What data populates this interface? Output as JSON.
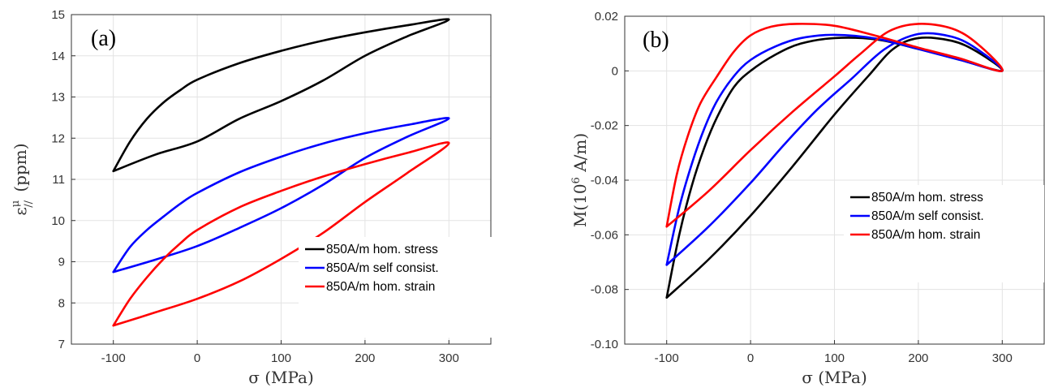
{
  "chart_data": [
    {
      "type": "line",
      "panel_label": "(a)",
      "xlabel": "σ (MPa)",
      "ylabel_main": "ε",
      "ylabel_super": "μ",
      "ylabel_sub": "//",
      "ylabel_unit": "(ppm)",
      "xlim": [
        -150,
        350
      ],
      "ylim": [
        7,
        15
      ],
      "xticks": [
        -100,
        0,
        100,
        200,
        300
      ],
      "yticks": [
        7,
        8,
        9,
        10,
        11,
        12,
        13,
        14,
        15
      ],
      "grid": true,
      "legend_position": "bottom-right",
      "series": [
        {
          "name": "850A/m hom. stress",
          "color": "#000000",
          "points": [
            [
              -100,
              11.2
            ],
            [
              -80,
              11.92
            ],
            [
              -60,
              12.47
            ],
            [
              -40,
              12.87
            ],
            [
              -20,
              13.17
            ],
            [
              0,
              13.42
            ],
            [
              50,
              13.82
            ],
            [
              100,
              14.12
            ],
            [
              150,
              14.37
            ],
            [
              200,
              14.57
            ],
            [
              250,
              14.74
            ],
            [
              300,
              14.88
            ],
            [
              250,
              14.47
            ],
            [
              200,
              14.0
            ],
            [
              150,
              13.4
            ],
            [
              100,
              12.9
            ],
            [
              50,
              12.47
            ],
            [
              0,
              11.92
            ],
            [
              -50,
              11.6
            ],
            [
              -100,
              11.2
            ]
          ]
        },
        {
          "name": "850A/m self consist.",
          "color": "#0000ff",
          "points": [
            [
              -100,
              8.75
            ],
            [
              -80,
              9.36
            ],
            [
              -60,
              9.77
            ],
            [
              -40,
              10.1
            ],
            [
              -20,
              10.41
            ],
            [
              0,
              10.67
            ],
            [
              50,
              11.17
            ],
            [
              100,
              11.55
            ],
            [
              150,
              11.87
            ],
            [
              200,
              12.12
            ],
            [
              250,
              12.32
            ],
            [
              300,
              12.48
            ],
            [
              250,
              12.03
            ],
            [
              200,
              11.52
            ],
            [
              150,
              10.87
            ],
            [
              100,
              10.3
            ],
            [
              50,
              9.82
            ],
            [
              0,
              9.38
            ],
            [
              -50,
              9.05
            ],
            [
              -100,
              8.75
            ]
          ]
        },
        {
          "name": "850A/m hom. strain",
          "color": "#ff0000",
          "points": [
            [
              -100,
              7.45
            ],
            [
              -80,
              8.1
            ],
            [
              -60,
              8.62
            ],
            [
              -40,
              9.07
            ],
            [
              -20,
              9.45
            ],
            [
              0,
              9.77
            ],
            [
              50,
              10.32
            ],
            [
              100,
              10.72
            ],
            [
              150,
              11.07
            ],
            [
              200,
              11.37
            ],
            [
              250,
              11.64
            ],
            [
              300,
              11.88
            ],
            [
              250,
              11.15
            ],
            [
              200,
              10.45
            ],
            [
              150,
              9.7
            ],
            [
              100,
              9.07
            ],
            [
              50,
              8.52
            ],
            [
              0,
              8.1
            ],
            [
              -50,
              7.77
            ],
            [
              -100,
              7.45
            ]
          ]
        }
      ]
    },
    {
      "type": "line",
      "panel_label": "(b)",
      "xlabel": "σ (MPa)",
      "ylabel_main": "M(10",
      "ylabel_super": "6",
      "ylabel_unit": " A/m)",
      "xlim": [
        -150,
        350
      ],
      "ylim": [
        -0.1,
        0.02
      ],
      "xticks": [
        -100,
        0,
        100,
        200,
        300
      ],
      "yticks": [
        -0.1,
        -0.08,
        -0.06,
        -0.04,
        -0.02,
        0,
        0.02
      ],
      "ytick_labels": [
        "-0.10",
        "-0.08",
        "-0.06",
        "-0.04",
        "-0.02",
        "0",
        "0.02"
      ],
      "grid": true,
      "legend_position": "center-right",
      "series": [
        {
          "name": "850A/m hom. stress",
          "color": "#000000",
          "points": [
            [
              -100,
              -0.083
            ],
            [
              -85,
              -0.06
            ],
            [
              -70,
              -0.042
            ],
            [
              -55,
              -0.028
            ],
            [
              -40,
              -0.017
            ],
            [
              -20,
              -0.006
            ],
            [
              0,
              0.0
            ],
            [
              30,
              0.006
            ],
            [
              60,
              0.01
            ],
            [
              100,
              0.012
            ],
            [
              150,
              0.0115
            ],
            [
              200,
              0.008
            ],
            [
              250,
              0.004
            ],
            [
              300,
              0.0
            ],
            [
              270,
              0.007
            ],
            [
              240,
              0.011
            ],
            [
              200,
              0.012
            ],
            [
              170,
              0.008
            ],
            [
              140,
              -0.002
            ],
            [
              100,
              -0.016
            ],
            [
              50,
              -0.035
            ],
            [
              0,
              -0.053
            ],
            [
              -50,
              -0.069
            ],
            [
              -100,
              -0.083
            ]
          ]
        },
        {
          "name": "850A/m self consist.",
          "color": "#0000ff",
          "points": [
            [
              -100,
              -0.071
            ],
            [
              -85,
              -0.05
            ],
            [
              -70,
              -0.034
            ],
            [
              -55,
              -0.021
            ],
            [
              -40,
              -0.011
            ],
            [
              -20,
              -0.002
            ],
            [
              0,
              0.004
            ],
            [
              30,
              0.009
            ],
            [
              60,
              0.012
            ],
            [
              100,
              0.0132
            ],
            [
              150,
              0.0118
            ],
            [
              200,
              0.008
            ],
            [
              250,
              0.004
            ],
            [
              300,
              0.0
            ],
            [
              270,
              0.008
            ],
            [
              240,
              0.0125
            ],
            [
              200,
              0.0135
            ],
            [
              160,
              0.008
            ],
            [
              120,
              -0.003
            ],
            [
              80,
              -0.014
            ],
            [
              40,
              -0.027
            ],
            [
              0,
              -0.041
            ],
            [
              -50,
              -0.057
            ],
            [
              -100,
              -0.071
            ]
          ]
        },
        {
          "name": "850A/m hom. strain",
          "color": "#ff0000",
          "points": [
            [
              -100,
              -0.057
            ],
            [
              -88,
              -0.038
            ],
            [
              -75,
              -0.024
            ],
            [
              -60,
              -0.012
            ],
            [
              -40,
              -0.002
            ],
            [
              -20,
              0.007
            ],
            [
              0,
              0.013
            ],
            [
              25,
              0.0162
            ],
            [
              55,
              0.0172
            ],
            [
              100,
              0.0165
            ],
            [
              150,
              0.0128
            ],
            [
              200,
              0.0085
            ],
            [
              250,
              0.0045
            ],
            [
              300,
              0.0
            ],
            [
              270,
              0.01
            ],
            [
              240,
              0.0155
            ],
            [
              200,
              0.0172
            ],
            [
              165,
              0.0145
            ],
            [
              130,
              0.006
            ],
            [
              100,
              -0.002
            ],
            [
              50,
              -0.015
            ],
            [
              0,
              -0.029
            ],
            [
              -50,
              -0.044
            ],
            [
              -100,
              -0.057
            ]
          ]
        }
      ]
    }
  ]
}
